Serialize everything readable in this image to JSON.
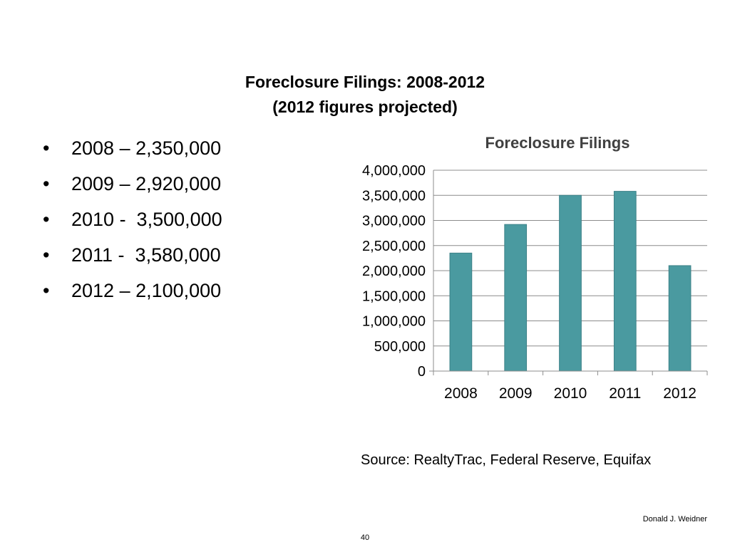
{
  "slide": {
    "title_line1": "Foreclosure Filings: 2008-2012",
    "title_line2": "(2012 figures projected)",
    "bullet_char": "•",
    "bullets": [
      "2008 – 2,350,000",
      "2009 – 2,920,000",
      "2010 -  3,500,000",
      "2011 -  3,580,000",
      "2012 – 2,100,000"
    ],
    "source": "Source: RealtyTrac, Federal Reserve, Equifax",
    "author": "Donald J. Weidner",
    "page_number": "40"
  },
  "chart_data": {
    "type": "bar",
    "title": "Foreclosure Filings",
    "xlabel": "",
    "ylabel": "",
    "categories": [
      "2008",
      "2009",
      "2010",
      "2011",
      "2012"
    ],
    "values": [
      2350000,
      2920000,
      3500000,
      3580000,
      2100000
    ],
    "ylim": [
      0,
      4000000
    ],
    "ytick_step": 500000,
    "grid": true,
    "legend": "none",
    "bar_color": "#4a9aa0",
    "bar_edge_color": "#3c8187",
    "grid_color": "#8c8c8c"
  }
}
